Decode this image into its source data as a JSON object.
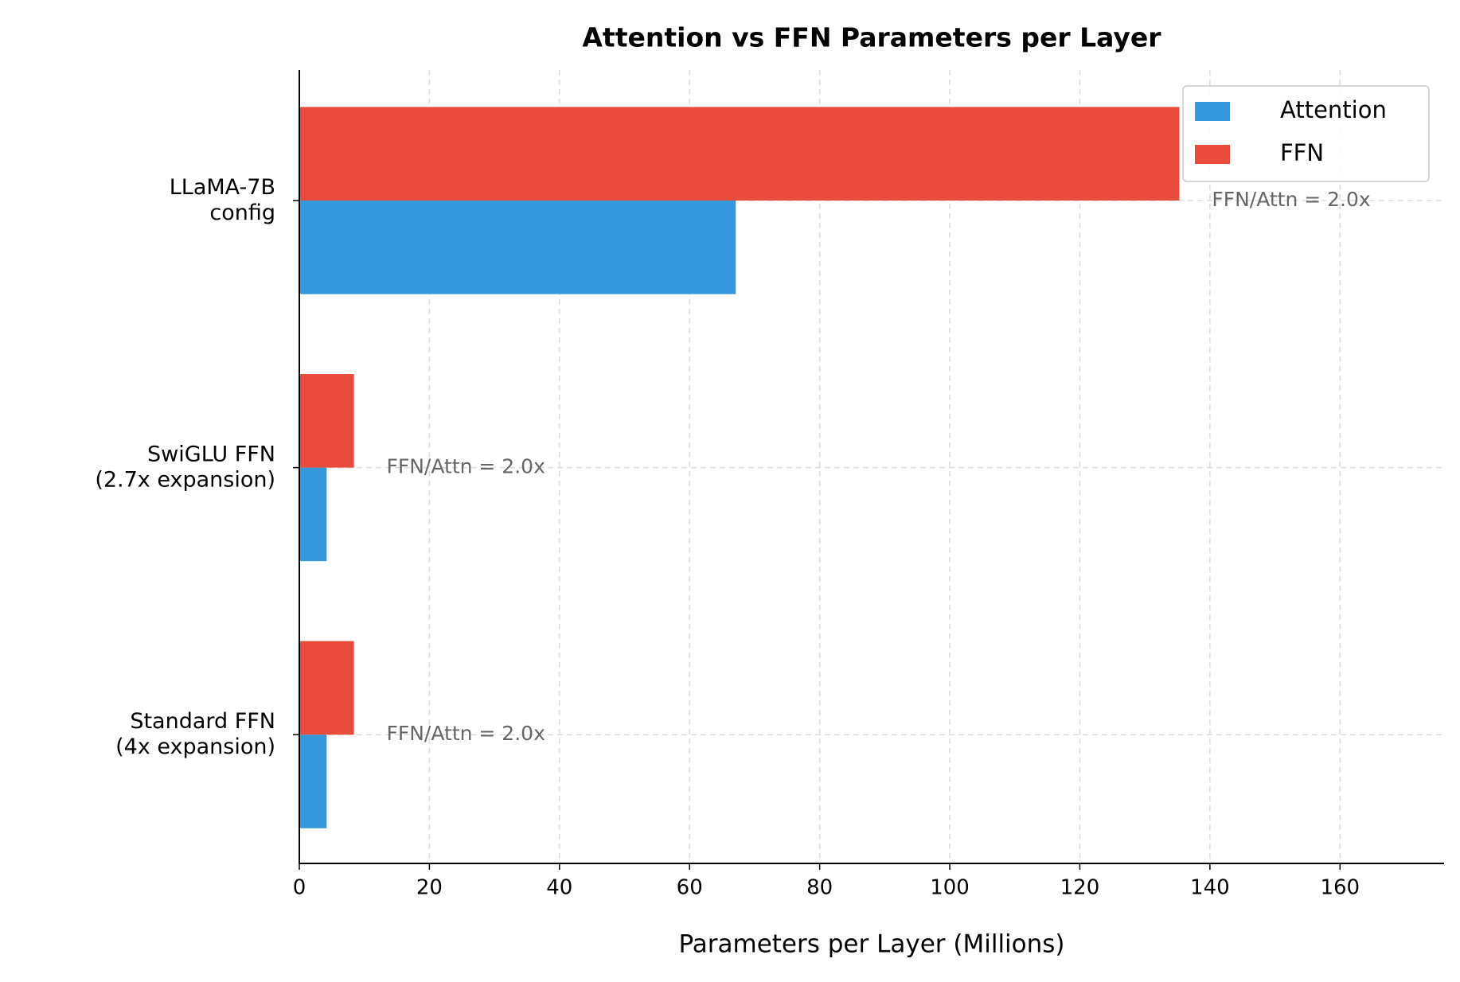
{
  "chart_data": {
    "type": "hbar",
    "title": "Attention vs FFN Parameters per Layer",
    "xlabel": "Parameters per Layer (Millions)",
    "categories": [
      "LLaMA-7B\nconfig",
      "SwiGLU FFN\n(2.7x expansion)",
      "Standard FFN\n(4x expansion)"
    ],
    "series": [
      {
        "name": "Attention",
        "color": "#3498db",
        "values": [
          67.1,
          4.2,
          4.2
        ]
      },
      {
        "name": "FFN",
        "color": "#e74c3c",
        "values": [
          135.3,
          8.4,
          8.4
        ]
      }
    ],
    "annotations": [
      "FFN/Attn = 2.0x",
      "FFN/Attn = 2.0x",
      "FFN/Attn = 2.0x"
    ],
    "xlim": [
      0,
      176
    ],
    "xticks": [
      0,
      20,
      40,
      60,
      80,
      100,
      120,
      140,
      160
    ],
    "grid": true,
    "legend": "upper right"
  }
}
